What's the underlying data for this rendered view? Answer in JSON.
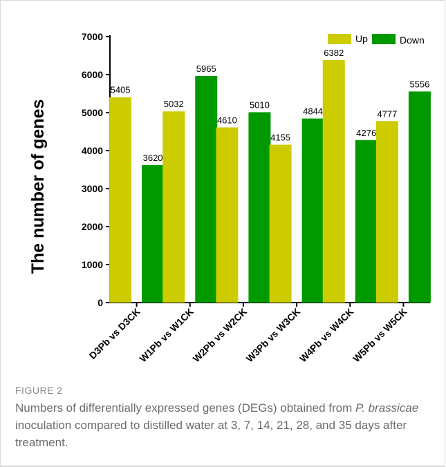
{
  "chart_data": {
    "type": "bar",
    "categories": [
      "D3Pb vs D3CK",
      "W1Pb vs W1CK",
      "W2Pb vs W2CK",
      "W3Pb vs W3CK",
      "W4Pb vs W4CK",
      "W5Pb vs W5CK"
    ],
    "series": [
      {
        "name": "Up",
        "values": [
          5405,
          5032,
          4610,
          4155,
          6382,
          4777
        ],
        "color": "#cccc00"
      },
      {
        "name": "Down",
        "values": [
          3620,
          5965,
          5010,
          4844,
          4276,
          5556
        ],
        "color": "#009900"
      }
    ],
    "ylabel": "The number of genes",
    "xlabel": "",
    "ylim": [
      0,
      7000
    ],
    "yticks": [
      0,
      1000,
      2000,
      3000,
      4000,
      5000,
      6000,
      7000
    ],
    "grid": false,
    "legend_position": "top-right",
    "data_labels": true
  },
  "figure": {
    "label": "FIGURE 2",
    "caption_before_italic": "Numbers of differentially expressed genes (DEGs) obtained from ",
    "caption_italic": "P. brassicae",
    "caption_after_italic": " inoculation compared to distilled water at 3, 7, 14, 21, 28, and 35 days after treatment."
  }
}
